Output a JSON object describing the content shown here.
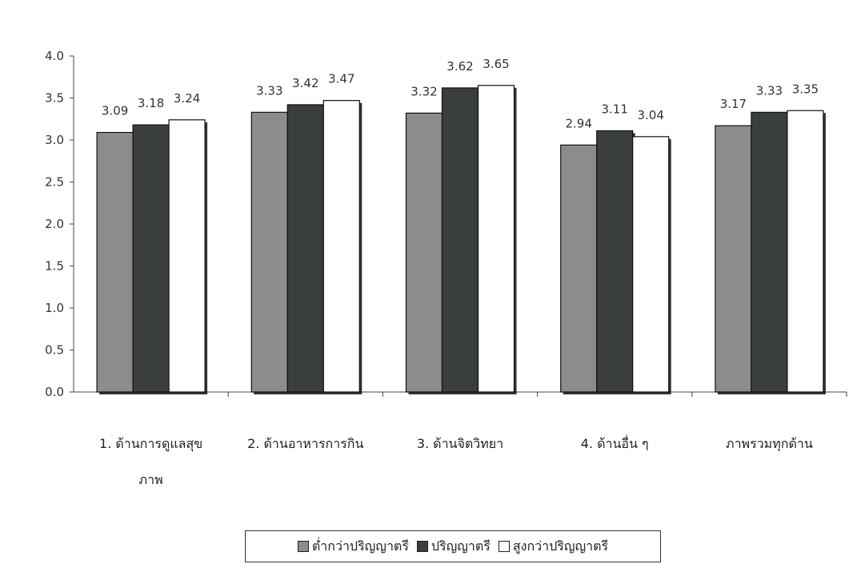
{
  "chart_data": {
    "type": "bar",
    "categories": [
      [
        "1. ด้านการดูแลสุข",
        "ภาพ"
      ],
      [
        "2. ด้านอาหารการกิน"
      ],
      [
        "3. ด้านจิตวิทยา"
      ],
      [
        "4. ด้านอื่น ๆ"
      ],
      [
        "ภาพรวมทุกด้าน"
      ]
    ],
    "series": [
      {
        "name": "ต่ำกว่าปริญญาตรี",
        "values": [
          3.09,
          3.33,
          3.32,
          2.94,
          3.17
        ],
        "color": "#8c8c8c"
      },
      {
        "name": "ปริญญาตรี",
        "values": [
          3.18,
          3.42,
          3.62,
          3.11,
          3.33
        ],
        "color": "#3a3f3c"
      },
      {
        "name": "สูงกว่าปริญญาตรี",
        "values": [
          3.24,
          3.47,
          3.65,
          3.04,
          3.35
        ],
        "color": "#ffffff"
      }
    ],
    "ylim": [
      0,
      4.0
    ],
    "yticks": [
      "0.0",
      "0.5",
      "1.0",
      "1.5",
      "2.0",
      "2.5",
      "3.0",
      "3.5",
      "4.0"
    ],
    "grid": false,
    "legend_position": "bottom"
  }
}
